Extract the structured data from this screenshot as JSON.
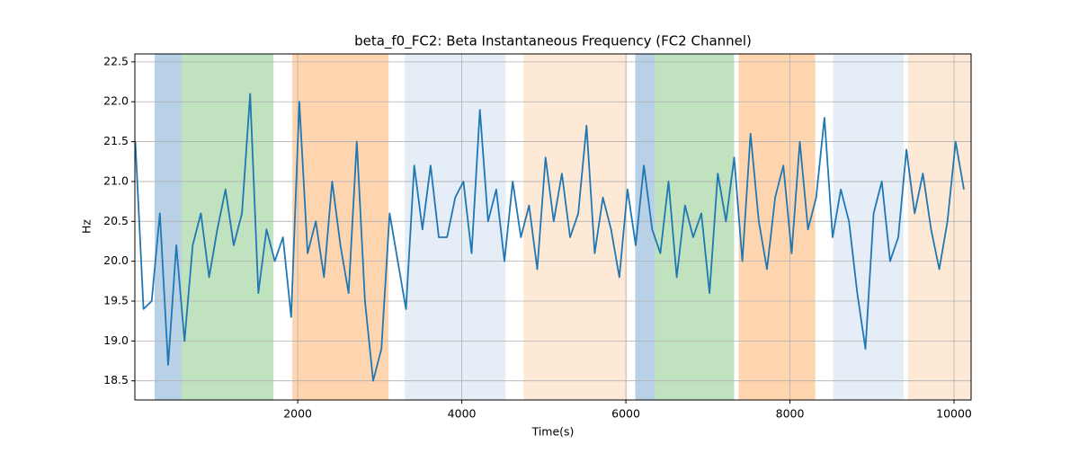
{
  "chart_data": {
    "type": "line",
    "title": "beta_f0_FC2: Beta Instantaneous Frequency (FC2 Channel)",
    "x_label": "Time(s)",
    "y_label": "Hz",
    "xlim": [
      15,
      10208
    ],
    "ylim": [
      18.26,
      22.6
    ],
    "xticks": [
      2000,
      4000,
      6000,
      8000,
      10000
    ],
    "yticks": [
      18.5,
      {
        "value": 19,
        "label": "19.0"
      },
      19.5,
      {
        "value": 20,
        "label": "20.0"
      },
      20.5,
      {
        "value": 21,
        "label": "21.0"
      },
      21.5,
      {
        "value": 22,
        "label": "22.0"
      },
      22.5
    ],
    "grid": true,
    "spans": [
      {
        "x": [
          256,
          585
        ],
        "color": "#b8d1e6"
      },
      {
        "x": [
          585,
          1704
        ],
        "color": "#c0e2bf"
      },
      {
        "x": [
          1934,
          3108
        ],
        "color": "#ffd5b0"
      },
      {
        "x": [
          3305,
          4534
        ],
        "color": "#e5edf7"
      },
      {
        "x": [
          4753,
          6015
        ],
        "color": "#fde9d6"
      },
      {
        "x": [
          6114,
          6355
        ],
        "color": "#b8d1e6"
      },
      {
        "x": [
          6355,
          7320
        ],
        "color": "#c0e2bf"
      },
      {
        "x": [
          7375,
          8308
        ],
        "color": "#ffd5b0"
      },
      {
        "x": [
          8527,
          9383
        ],
        "color": "#e5edf7"
      },
      {
        "x": [
          9438,
          10208
        ],
        "color": "#fde9d6"
      }
    ],
    "x": [
      20,
      120,
      220,
      320,
      420,
      520,
      620,
      720,
      820,
      920,
      1020,
      1120,
      1220,
      1320,
      1420,
      1520,
      1620,
      1720,
      1820,
      1920,
      2020,
      2120,
      2220,
      2320,
      2420,
      2520,
      2620,
      2720,
      2820,
      2920,
      3020,
      3120,
      3220,
      3320,
      3420,
      3520,
      3620,
      3720,
      3820,
      3920,
      4020,
      4120,
      4220,
      4320,
      4420,
      4520,
      4620,
      4720,
      4820,
      4920,
      5020,
      5120,
      5220,
      5320,
      5420,
      5520,
      5620,
      5720,
      5820,
      5920,
      6020,
      6120,
      6220,
      6320,
      6420,
      6520,
      6620,
      6720,
      6820,
      6920,
      7020,
      7120,
      7220,
      7320,
      7420,
      7520,
      7620,
      7720,
      7820,
      7920,
      8020,
      8120,
      8220,
      8320,
      8420,
      8520,
      8620,
      8720,
      8820,
      8920,
      9020,
      9120,
      9220,
      9320,
      9420,
      9520,
      9620,
      9720,
      9820,
      9920,
      10020,
      10120
    ],
    "series": [
      {
        "color": "#1f77b4",
        "values": [
          21.5,
          19.4,
          19.5,
          20.6,
          18.7,
          20.2,
          19.0,
          20.2,
          20.6,
          19.8,
          20.4,
          20.9,
          20.2,
          20.6,
          22.1,
          19.6,
          20.4,
          20.0,
          20.3,
          19.3,
          22.0,
          20.1,
          20.5,
          19.8,
          21.0,
          20.2,
          19.6,
          21.5,
          19.5,
          18.5,
          18.9,
          20.6,
          20.0,
          19.4,
          21.2,
          20.4,
          21.2,
          20.3,
          20.3,
          20.8,
          21.0,
          20.1,
          21.9,
          20.5,
          20.9,
          20.0,
          21.0,
          20.3,
          20.7,
          19.9,
          21.3,
          20.5,
          21.1,
          20.3,
          20.6,
          21.7,
          20.1,
          20.8,
          20.4,
          19.8,
          20.9,
          20.2,
          21.2,
          20.4,
          20.1,
          21.0,
          19.8,
          20.7,
          20.3,
          20.6,
          19.6,
          21.1,
          20.5,
          21.3,
          20.0,
          21.6,
          20.5,
          19.9,
          20.8,
          21.2,
          20.1,
          21.5,
          20.4,
          20.8,
          21.8,
          20.3,
          20.9,
          20.5,
          19.6,
          18.9,
          20.6,
          21.0,
          20.0,
          20.3,
          21.4,
          20.6,
          21.1,
          20.4,
          19.9,
          20.5,
          21.5,
          20.9
        ]
      }
    ]
  }
}
